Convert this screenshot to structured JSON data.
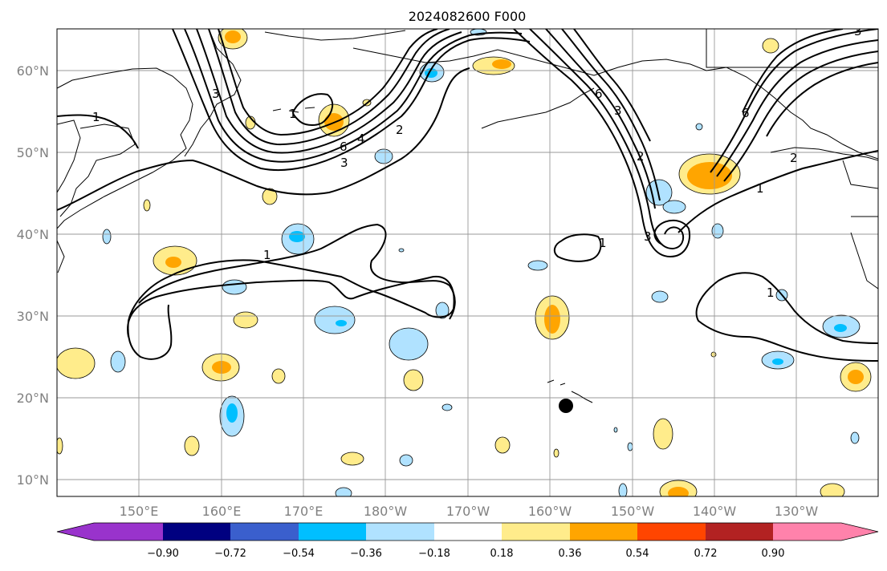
{
  "title": "2024082600 F000",
  "map": {
    "lat_labels": [
      "60°N",
      "50°N",
      "40°N",
      "30°N",
      "20°N",
      "10°N"
    ],
    "lon_labels": [
      "150°E",
      "160°E",
      "170°E",
      "180°W",
      "170°W",
      "160°W",
      "150°W",
      "140°W",
      "130°W"
    ],
    "contour_labels": [
      "1",
      "3",
      "1",
      "6",
      "4",
      "2",
      "3",
      "6",
      "3",
      "2",
      "1",
      "3",
      "1",
      "1",
      "2",
      "1",
      "6",
      "3"
    ],
    "marker": "hawaii-marker"
  },
  "colorbar": {
    "colors": [
      "#9933cc",
      "#000080",
      "#3a5fcd",
      "#00bfff",
      "#b0e2ff",
      "#ffffff",
      "#ffec8b",
      "#ffa500",
      "#ff4500",
      "#b22222",
      "#ff82ab"
    ],
    "ticks": [
      "−0.90",
      "−0.72",
      "−0.54",
      "−0.36",
      "−0.18",
      "0.18",
      "0.36",
      "0.54",
      "0.72",
      "0.90"
    ]
  },
  "colors": {
    "light_blue": "#b0e2ff",
    "blue": "#00bfff",
    "yellow": "#ffec8b",
    "orange": "#ffa500",
    "grid": "#999999"
  }
}
